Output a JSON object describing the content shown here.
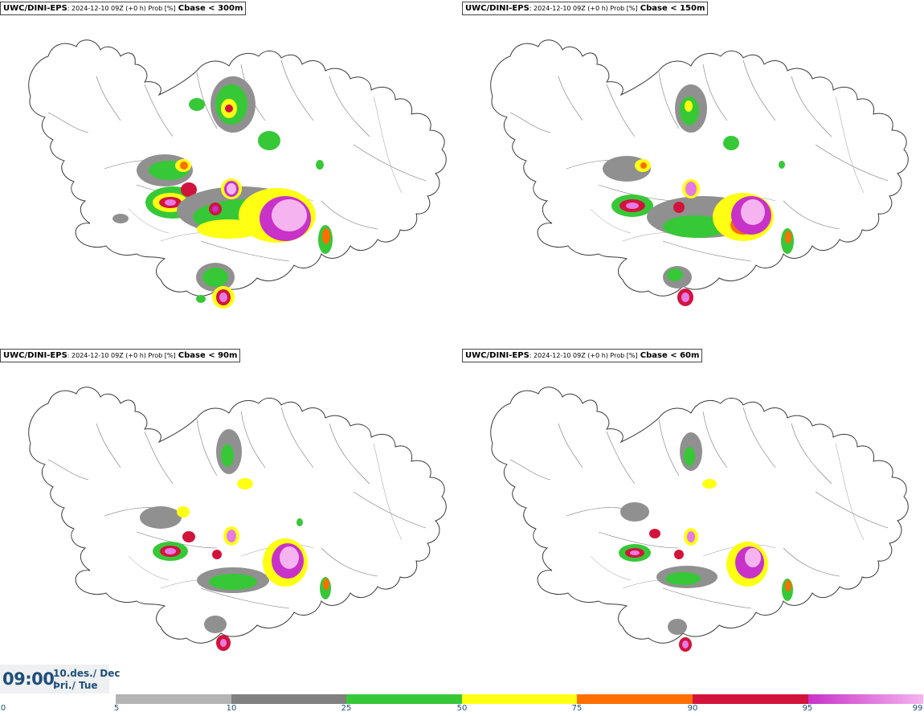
{
  "panels": [
    {
      "id": "p300",
      "source": "UWC/DINI-EPS",
      "meta": ": 2024-12-10 09Z (+0 h) Prob [%]",
      "threshold": "Cbase < 300m"
    },
    {
      "id": "p150",
      "source": "UWC/DINI-EPS",
      "meta": ": 2024-12-10 09Z (+0 h) Prob [%]",
      "threshold": "Cbase < 150m"
    },
    {
      "id": "p90",
      "source": "UWC/DINI-EPS",
      "meta": ": 2024-12-10 09Z (+0 h) Prob [%]",
      "threshold": "Cbase < 90m"
    },
    {
      "id": "p60",
      "source": "UWC/DINI-EPS",
      "meta": ": 2024-12-10 09Z (+0 h) Prob [%]",
      "threshold": "Cbase < 60m"
    }
  ],
  "time": {
    "clock": "09:00",
    "date_line": "10.des./ Dec",
    "day_line": "Þri./ Tue"
  },
  "legend": {
    "ticks": [
      "0",
      "5",
      "10",
      "25",
      "50",
      "75",
      "90",
      "95",
      "99"
    ],
    "colors": [
      "#b4b4b4",
      "#808080",
      "#37c837",
      "#ffff14",
      "#ff6e00",
      "#d2143c",
      "#c832c8"
    ],
    "last_gradient": [
      "#c832c8",
      "#f5b4f0"
    ]
  }
}
